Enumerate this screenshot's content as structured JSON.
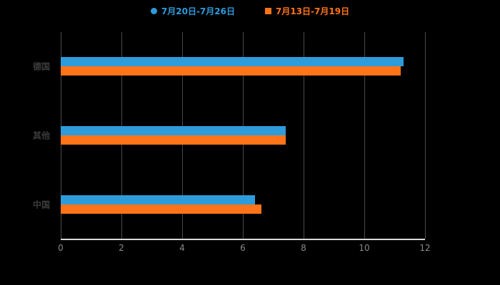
{
  "legend": [
    {
      "label": "7月20日-7月26日",
      "color": "#2E9BDB",
      "marker": "circle"
    },
    {
      "label": "7月13日-7月19日",
      "color": "#FF7418",
      "marker": "square"
    }
  ],
  "chart_data": {
    "type": "bar",
    "orientation": "horizontal",
    "title": "",
    "xlabel": "",
    "ylabel": "",
    "categories": [
      "德国",
      "其他",
      "中国"
    ],
    "series": [
      {
        "name": "7月20日-7月26日",
        "color": "#2E9BDB",
        "values": [
          11.3,
          7.4,
          6.4
        ]
      },
      {
        "name": "7月13日-7月19日",
        "color": "#FF7418",
        "values": [
          11.2,
          7.4,
          6.6
        ]
      }
    ],
    "xlim": [
      0,
      12
    ],
    "xticks": [
      0,
      2,
      4,
      6,
      8,
      10,
      12
    ],
    "grid": true,
    "legend_position": "top",
    "background": "#000000"
  }
}
